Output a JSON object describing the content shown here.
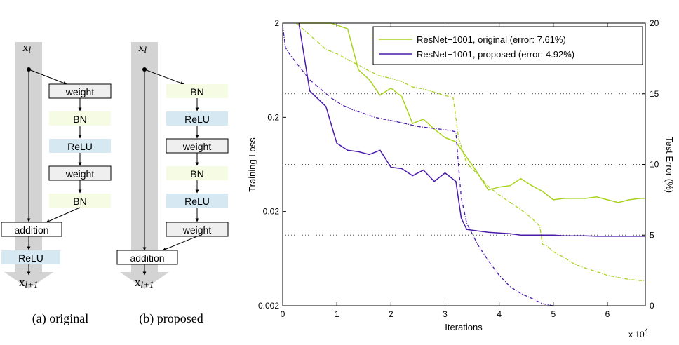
{
  "diagrams": [
    {
      "id": "a",
      "input_label": "x",
      "input_sub": "l",
      "output_label": "x",
      "output_sub": "l+1",
      "caption": "(a) original",
      "blocks": [
        {
          "label": "weight",
          "kind": "weight",
          "color": "#efefef"
        },
        {
          "label": "BN",
          "kind": "bn",
          "color": "#f6fbe3"
        },
        {
          "label": "ReLU",
          "kind": "relu",
          "color": "#d6e9f2"
        },
        {
          "label": "weight",
          "kind": "weight",
          "color": "#efefef"
        },
        {
          "label": "BN",
          "kind": "bn",
          "color": "#f6fbe3"
        }
      ],
      "addition_label": "addition",
      "post_relu_label": "ReLU"
    },
    {
      "id": "b",
      "input_label": "x",
      "input_sub": "l",
      "output_label": "x",
      "output_sub": "l+1",
      "caption": "(b) proposed",
      "blocks": [
        {
          "label": "BN",
          "kind": "bn",
          "color": "#f6fbe3"
        },
        {
          "label": "ReLU",
          "kind": "relu",
          "color": "#d6e9f2"
        },
        {
          "label": "weight",
          "kind": "weight",
          "color": "#efefef"
        },
        {
          "label": "BN",
          "kind": "bn",
          "color": "#f6fbe3"
        },
        {
          "label": "ReLU",
          "kind": "relu",
          "color": "#d6e9f2"
        },
        {
          "label": "weight",
          "kind": "weight",
          "color": "#efefef"
        }
      ],
      "addition_label": "addition"
    }
  ],
  "chart_data": {
    "type": "line",
    "xlabel": "Iterations",
    "x_multiplier_label": "x 10",
    "x_multiplier_exp": "4",
    "xlim": [
      0,
      6.7
    ],
    "x_ticks": [
      0,
      1,
      2,
      3,
      4,
      5,
      6
    ],
    "ylabel_left": "Training Loss",
    "ylim_left": [
      0.002,
      2
    ],
    "y_scale_left": "log",
    "y_ticks_left": [
      2,
      0.2,
      0.02,
      0.002
    ],
    "y_tick_labels_left": [
      "2",
      "0.2",
      "0.02",
      "0.002"
    ],
    "ylabel_right": "Test Error (%)",
    "ylim_right": [
      0,
      20
    ],
    "y_ticks_right": [
      0,
      5,
      10,
      15,
      20
    ],
    "gridlines_right": [
      5,
      10,
      15
    ],
    "legend_position": "top-right",
    "series": [
      {
        "name": "ResNet−1001, original (error: 7.61%)",
        "color": "#a8d21c",
        "test_error": [
          [
            0.3,
            20
          ],
          [
            0.9,
            20
          ],
          [
            1.2,
            19.6
          ],
          [
            1.4,
            16.7
          ],
          [
            1.6,
            16.0
          ],
          [
            1.8,
            14.9
          ],
          [
            2.0,
            15.4
          ],
          [
            2.2,
            14.8
          ],
          [
            2.4,
            12.9
          ],
          [
            2.6,
            13.2
          ],
          [
            2.8,
            12.5
          ],
          [
            3.0,
            11.9
          ],
          [
            3.2,
            11.6
          ],
          [
            3.4,
            10.5
          ],
          [
            3.6,
            9.4
          ],
          [
            3.8,
            8.2
          ],
          [
            4.0,
            8.4
          ],
          [
            4.2,
            8.5
          ],
          [
            4.4,
            9.0
          ],
          [
            4.6,
            8.5
          ],
          [
            4.8,
            8.1
          ],
          [
            5.0,
            7.5
          ],
          [
            5.2,
            7.6
          ],
          [
            5.4,
            7.6
          ],
          [
            5.6,
            7.6
          ],
          [
            5.8,
            7.7
          ],
          [
            6.0,
            7.5
          ],
          [
            6.2,
            7.3
          ],
          [
            6.4,
            7.5
          ],
          [
            6.6,
            7.6
          ],
          [
            6.7,
            7.6
          ]
        ],
        "train_loss": [
          [
            0.25,
            2.0
          ],
          [
            0.5,
            1.5
          ],
          [
            0.8,
            1.05
          ],
          [
            1.0,
            0.95
          ],
          [
            1.2,
            0.82
          ],
          [
            1.4,
            0.72
          ],
          [
            1.6,
            0.62
          ],
          [
            1.8,
            0.55
          ],
          [
            2.0,
            0.52
          ],
          [
            2.2,
            0.48
          ],
          [
            2.4,
            0.42
          ],
          [
            2.6,
            0.4
          ],
          [
            2.8,
            0.37
          ],
          [
            3.0,
            0.34
          ],
          [
            3.1,
            0.33
          ],
          [
            3.15,
            0.32
          ],
          [
            3.25,
            0.12
          ],
          [
            3.4,
            0.065
          ],
          [
            3.6,
            0.05
          ],
          [
            3.8,
            0.037
          ],
          [
            4.0,
            0.03
          ],
          [
            4.2,
            0.025
          ],
          [
            4.4,
            0.021
          ],
          [
            4.6,
            0.017
          ],
          [
            4.75,
            0.014
          ],
          [
            4.8,
            0.009
          ],
          [
            4.9,
            0.0085
          ],
          [
            5.0,
            0.0075
          ],
          [
            5.2,
            0.0065
          ],
          [
            5.4,
            0.0055
          ],
          [
            5.6,
            0.005
          ],
          [
            5.8,
            0.0046
          ],
          [
            6.0,
            0.0042
          ],
          [
            6.2,
            0.004
          ],
          [
            6.4,
            0.0038
          ],
          [
            6.6,
            0.0037
          ],
          [
            6.7,
            0.0037
          ]
        ]
      },
      {
        "name": "ResNet−1001, proposed (error: 4.92%)",
        "color": "#4a1aa9",
        "test_error": [
          [
            0.3,
            20
          ],
          [
            0.5,
            15.2
          ],
          [
            0.8,
            14.1
          ],
          [
            1.0,
            11.5
          ],
          [
            1.2,
            11.0
          ],
          [
            1.4,
            10.9
          ],
          [
            1.6,
            10.7
          ],
          [
            1.8,
            11.0
          ],
          [
            2.0,
            9.8
          ],
          [
            2.2,
            9.7
          ],
          [
            2.4,
            9.2
          ],
          [
            2.6,
            9.6
          ],
          [
            2.8,
            8.8
          ],
          [
            3.0,
            9.4
          ],
          [
            3.2,
            8.8
          ],
          [
            3.3,
            6.2
          ],
          [
            3.4,
            5.4
          ],
          [
            3.6,
            5.3
          ],
          [
            3.8,
            5.2
          ],
          [
            4.0,
            5.15
          ],
          [
            4.2,
            5.1
          ],
          [
            4.4,
            5.0
          ],
          [
            4.6,
            5.0
          ],
          [
            4.8,
            5.0
          ],
          [
            5.0,
            5.0
          ],
          [
            5.2,
            4.95
          ],
          [
            5.4,
            4.95
          ],
          [
            5.6,
            4.95
          ],
          [
            5.8,
            4.92
          ],
          [
            6.0,
            4.92
          ],
          [
            6.2,
            4.92
          ],
          [
            6.4,
            4.92
          ],
          [
            6.7,
            4.92
          ]
        ],
        "train_loss": [
          [
            0.0,
            1.9
          ],
          [
            0.05,
            1.1
          ],
          [
            0.15,
            0.9
          ],
          [
            0.3,
            0.7
          ],
          [
            0.5,
            0.5
          ],
          [
            0.7,
            0.4
          ],
          [
            0.9,
            0.32
          ],
          [
            1.1,
            0.27
          ],
          [
            1.3,
            0.24
          ],
          [
            1.5,
            0.22
          ],
          [
            1.7,
            0.2
          ],
          [
            1.9,
            0.19
          ],
          [
            2.1,
            0.18
          ],
          [
            2.3,
            0.17
          ],
          [
            2.5,
            0.16
          ],
          [
            2.7,
            0.155
          ],
          [
            2.9,
            0.15
          ],
          [
            3.1,
            0.145
          ],
          [
            3.2,
            0.14
          ],
          [
            3.25,
            0.06
          ],
          [
            3.3,
            0.028
          ],
          [
            3.4,
            0.015
          ],
          [
            3.6,
            0.009
          ],
          [
            3.8,
            0.006
          ],
          [
            4.0,
            0.0042
          ],
          [
            4.2,
            0.0032
          ],
          [
            4.4,
            0.0027
          ],
          [
            4.6,
            0.0024
          ],
          [
            4.8,
            0.0021
          ],
          [
            5.0,
            0.002
          ]
        ]
      }
    ]
  }
}
